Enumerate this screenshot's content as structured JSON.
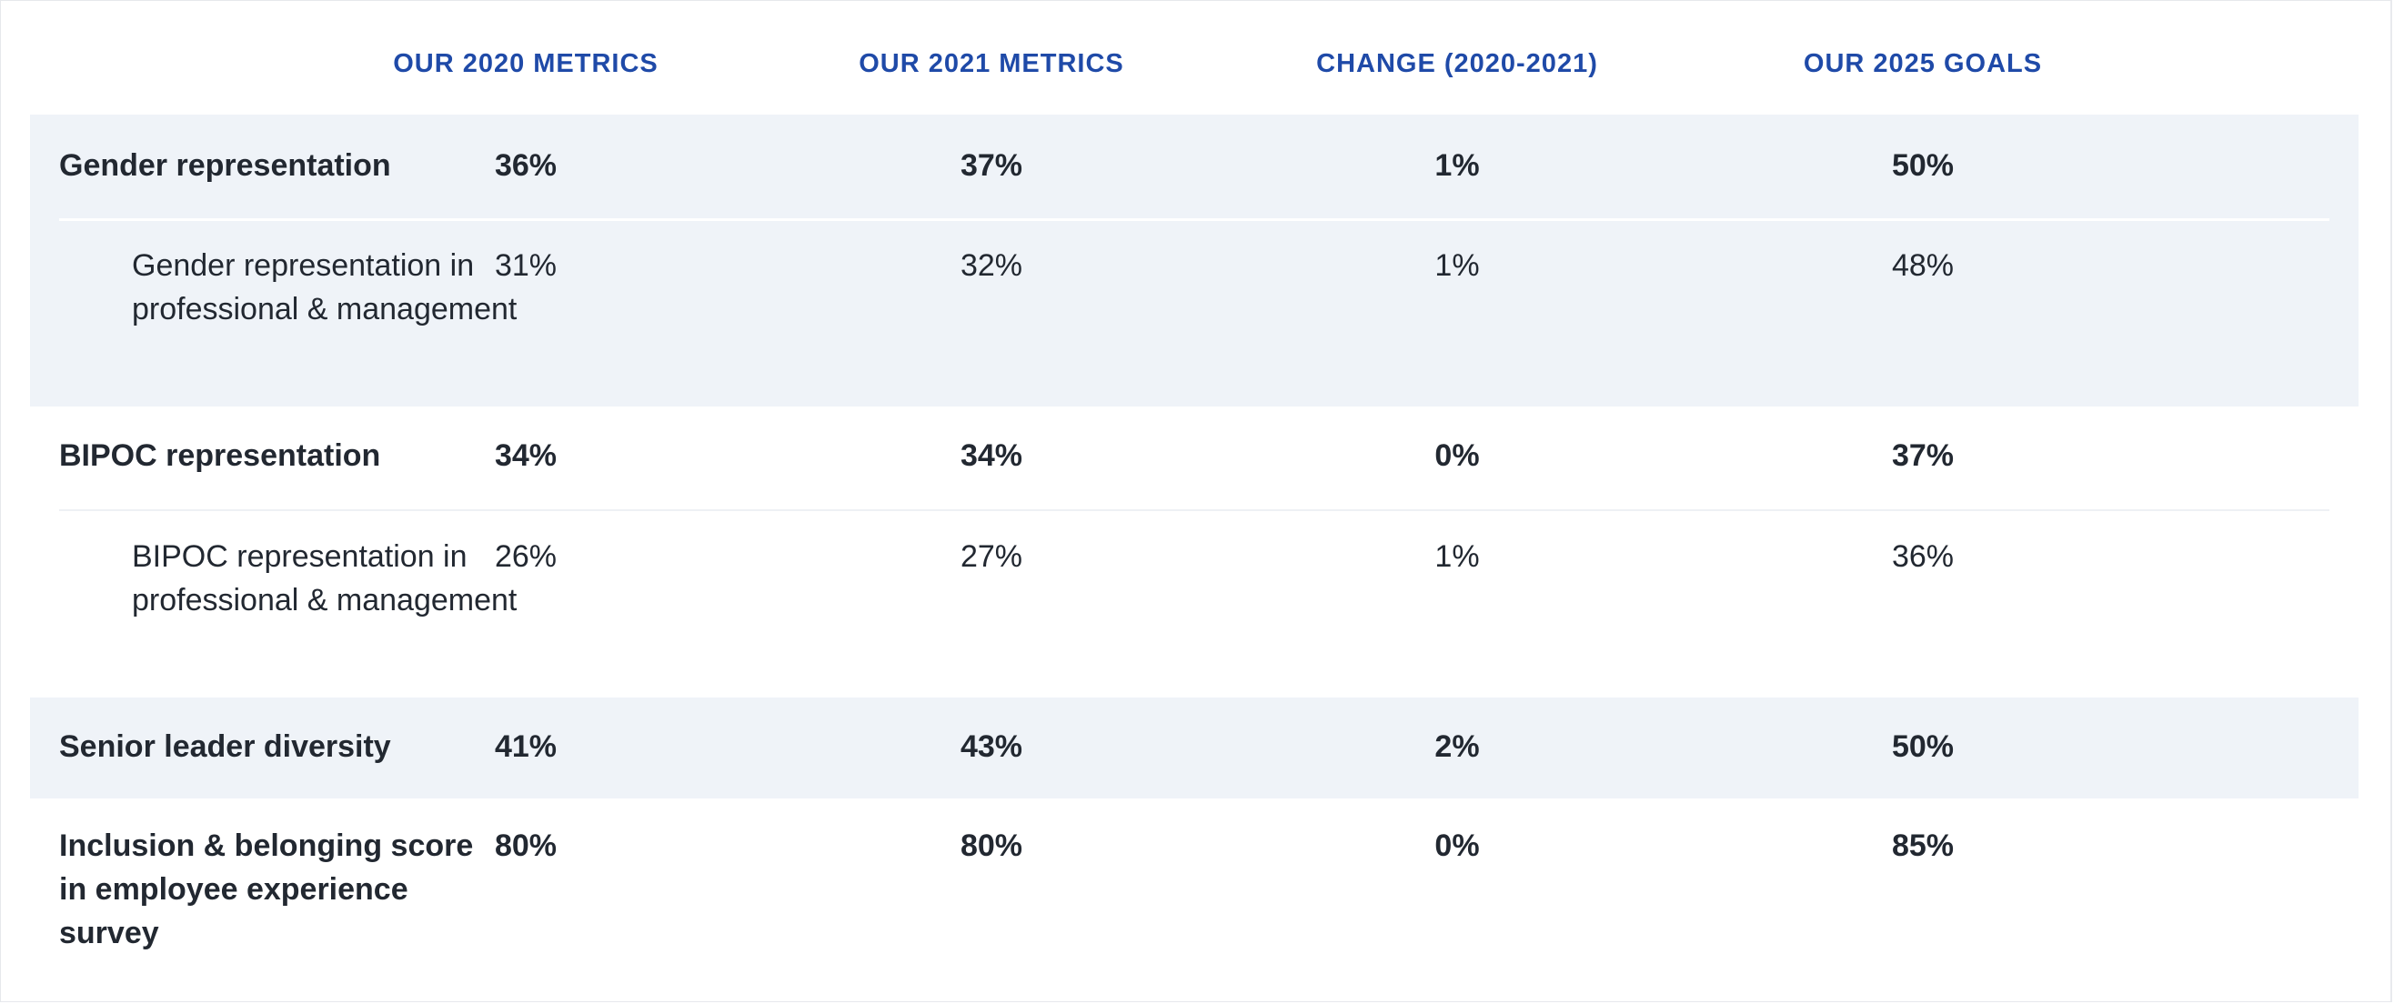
{
  "headers": [
    "OUR 2020 METRICS",
    "OUR 2021 METRICS",
    "CHANGE (2020-2021)",
    "OUR 2025 GOALS"
  ],
  "rows": {
    "gender": {
      "label": "Gender representation",
      "values": [
        "36%",
        "37%",
        "1%",
        "50%"
      ],
      "sub": {
        "label": "Gender representation in professional & management",
        "values": [
          "31%",
          "32%",
          "1%",
          "48%"
        ]
      }
    },
    "bipoc": {
      "label": "BIPOC representation",
      "values": [
        "34%",
        "34%",
        "0%",
        "37%"
      ],
      "sub": {
        "label": "BIPOC representation in professional & management",
        "values": [
          "26%",
          "27%",
          "1%",
          "36%"
        ]
      }
    },
    "senior": {
      "label": "Senior leader diversity",
      "values": [
        "41%",
        "43%",
        "2%",
        "50%"
      ]
    },
    "inclusion": {
      "label": "Inclusion & belonging score in employee experience survey",
      "values": [
        "80%",
        "80%",
        "0%",
        "85%"
      ]
    }
  },
  "colors": {
    "header": "#1f4aa8",
    "shaded_bg": "#eff3f8",
    "text": "#222831"
  }
}
